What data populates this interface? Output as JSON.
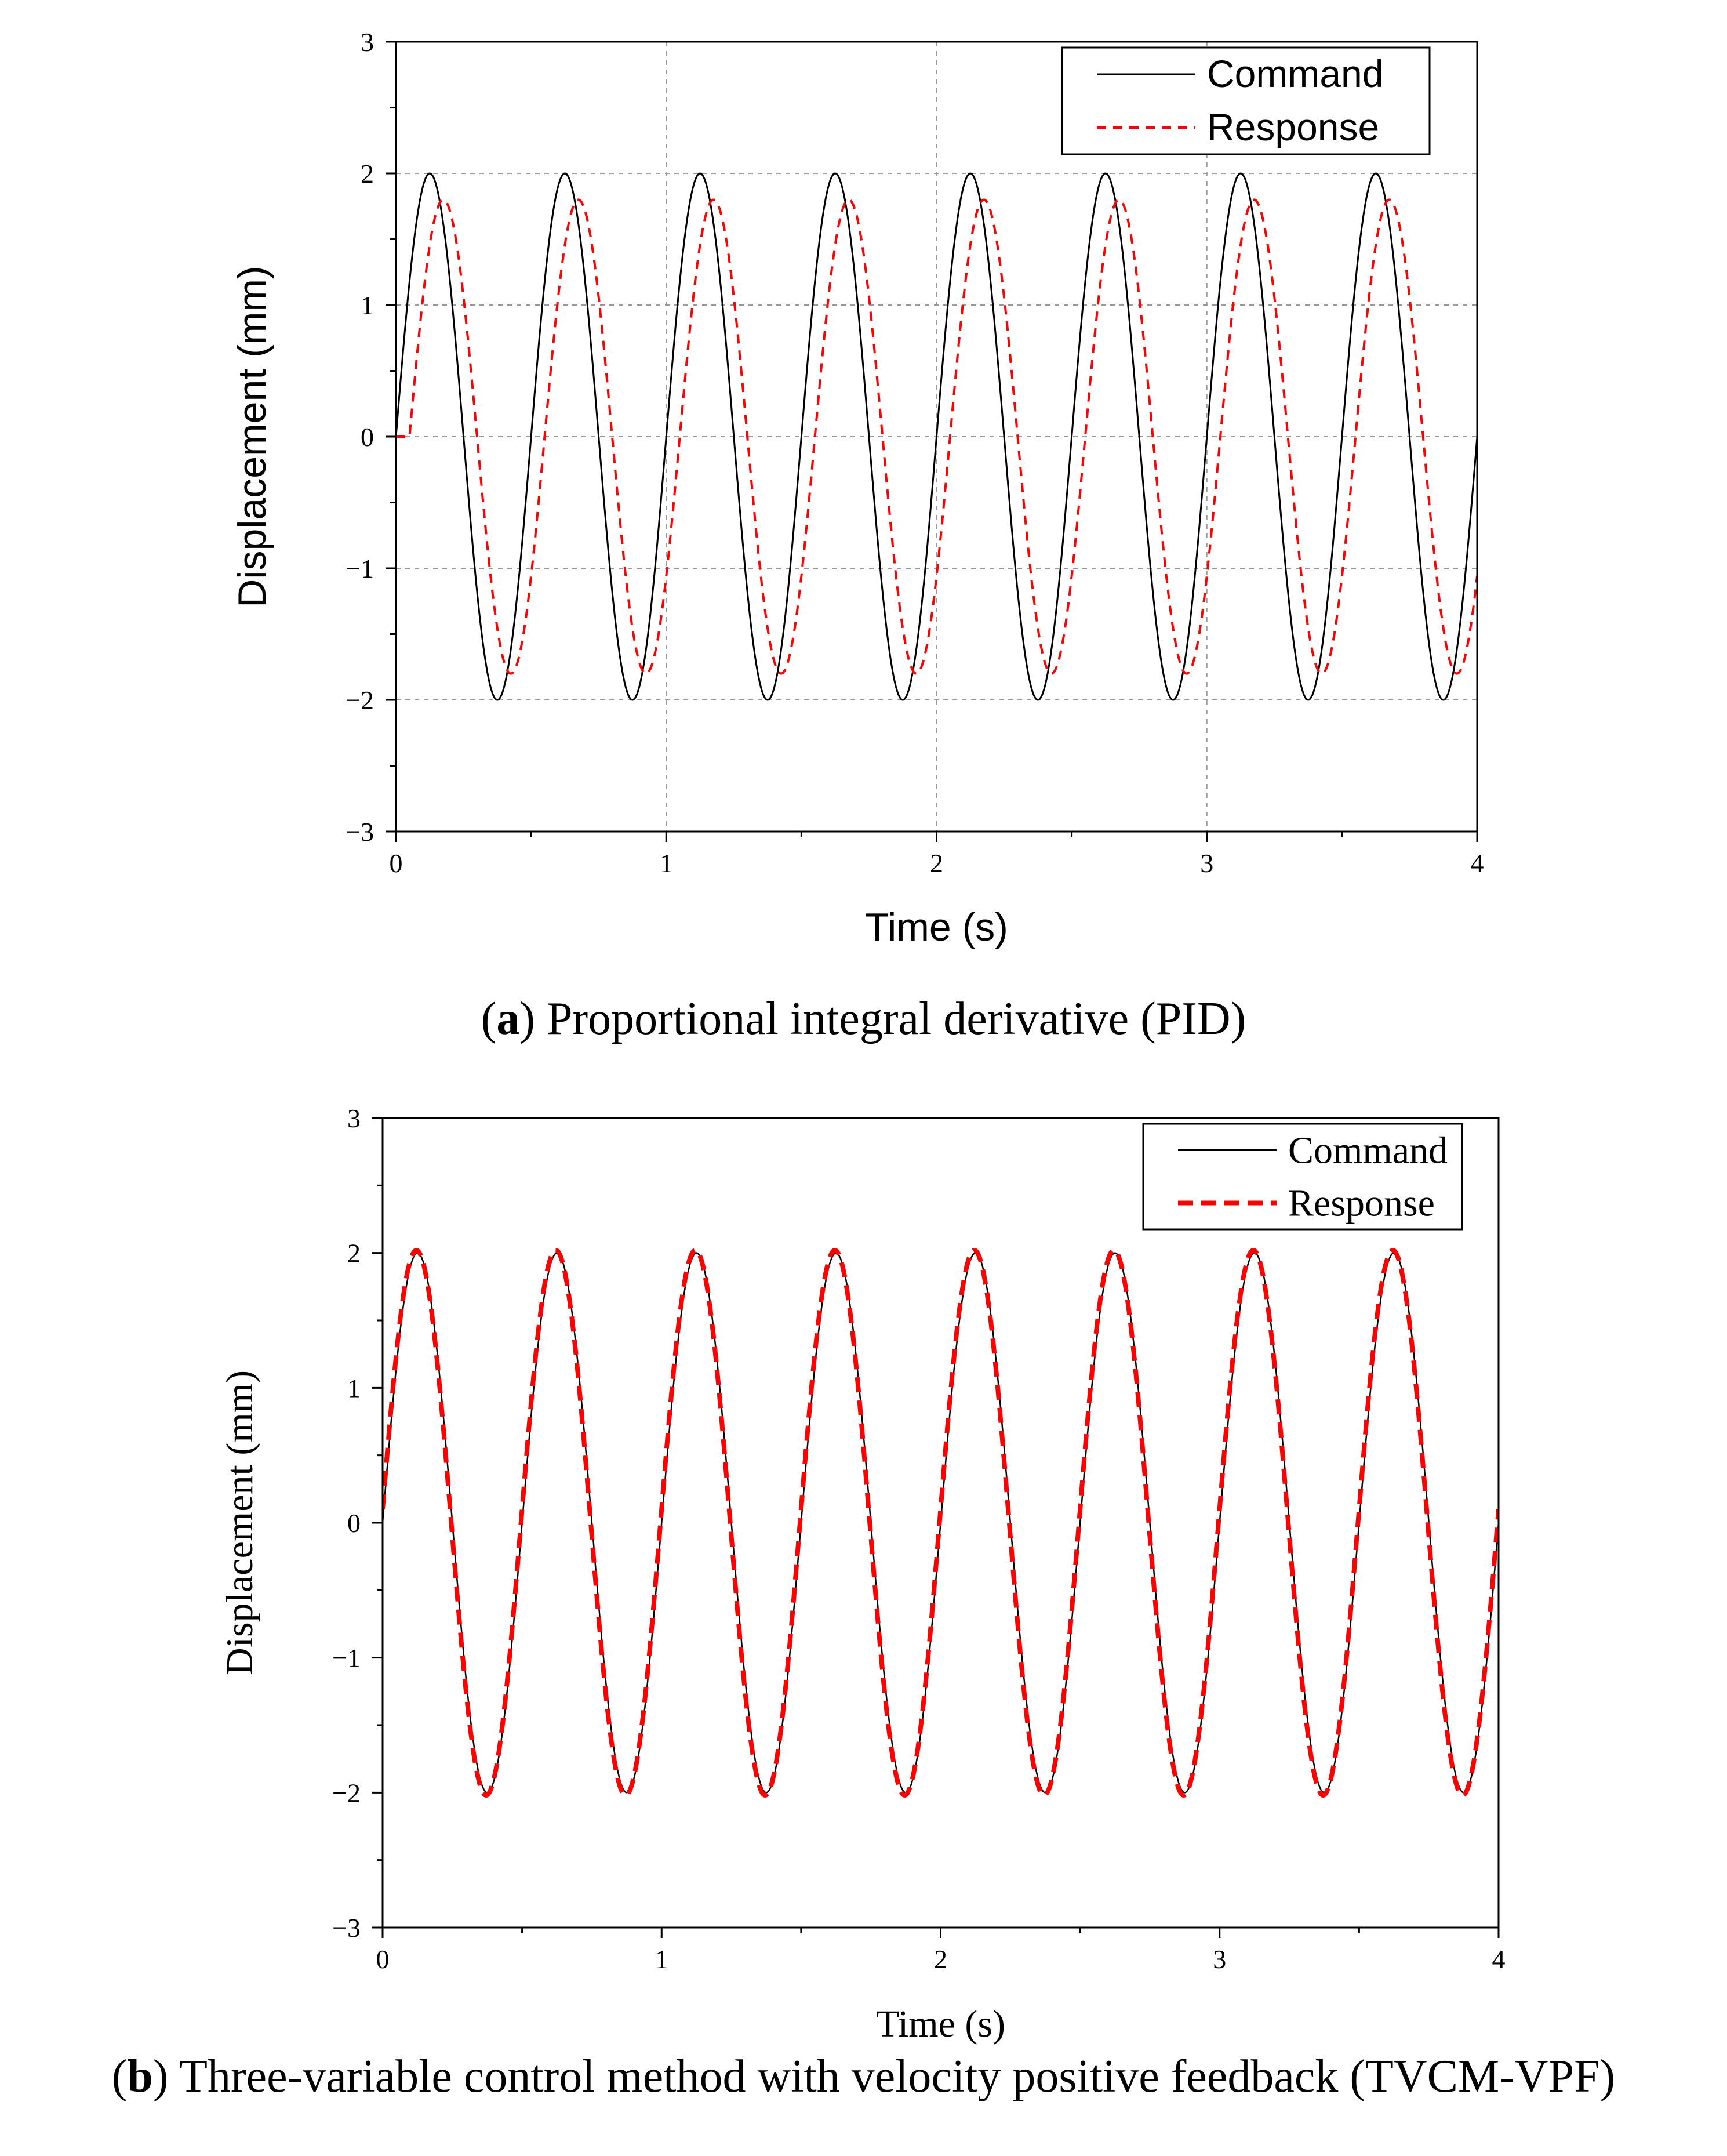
{
  "figure": {
    "caption_a": {
      "letter": "a",
      "text": "Proportional integral derivative (PID)"
    },
    "caption_b": {
      "letter": "b",
      "text": "Three-variable control method with velocity positive feedback (TVCM-VPF)"
    }
  },
  "chart_data": [
    {
      "type": "line",
      "title": "",
      "xlabel": "Time (s)",
      "ylabel": "Displacement (mm)",
      "xlim": [
        0,
        4
      ],
      "ylim": [
        -3,
        3
      ],
      "xticks": [
        0,
        1,
        2,
        3,
        4
      ],
      "xtick_labels": [
        "0",
        "1",
        "2",
        "3",
        "4"
      ],
      "yticks": [
        -3,
        -2,
        -1,
        0,
        1,
        2,
        3
      ],
      "ytick_labels": [
        "−3",
        "−2",
        "−1",
        "0",
        "1",
        "2",
        "3"
      ],
      "grid": true,
      "legend_position": "top-right",
      "series": [
        {
          "name": "Command",
          "style": "solid",
          "color": "#000000",
          "amplitude": 2.0,
          "frequency_hz": 2,
          "phase_delay_s": 0.0,
          "peaks_x": [
            0.125,
            0.625,
            1.125,
            1.625,
            2.125,
            2.625,
            3.125,
            3.625
          ],
          "peak_y": 2.0,
          "trough_y": -2.0
        },
        {
          "name": "Response",
          "style": "dashed",
          "color": "#ff0000",
          "amplitude": 1.8,
          "frequency_hz": 2,
          "phase_delay_s": 0.05,
          "peaks_x": [
            0.175,
            0.675,
            1.175,
            1.675,
            2.175,
            2.675,
            3.175,
            3.675
          ],
          "peak_y": 1.8,
          "trough_y": -1.8
        }
      ]
    },
    {
      "type": "line",
      "title": "",
      "xlabel": "Time (s)",
      "ylabel": "Displacement (mm)",
      "xlim": [
        0,
        4
      ],
      "ylim": [
        -3,
        3
      ],
      "xticks": [
        0,
        1,
        2,
        3,
        4
      ],
      "xtick_labels": [
        "0",
        "1",
        "2",
        "3",
        "4"
      ],
      "yticks": [
        -3,
        -2,
        -1,
        0,
        1,
        2,
        3
      ],
      "ytick_labels": [
        "−3",
        "−2",
        "−1",
        "0",
        "1",
        "2",
        "3"
      ],
      "grid": false,
      "legend_position": "top-right",
      "series": [
        {
          "name": "Command",
          "style": "solid",
          "color": "#000000",
          "amplitude": 2.0,
          "frequency_hz": 2,
          "phase_delay_s": 0.0,
          "peaks_x": [
            0.125,
            0.625,
            1.125,
            1.625,
            2.125,
            2.625,
            3.125,
            3.625
          ],
          "peak_y": 2.0,
          "trough_y": -2.0
        },
        {
          "name": "Response",
          "style": "dashed",
          "color": "#ff0000",
          "amplitude": 2.02,
          "frequency_hz": 2,
          "phase_delay_s": -0.004,
          "peaks_x": [
            0.12,
            0.62,
            1.12,
            1.62,
            2.12,
            2.62,
            3.12,
            3.62
          ],
          "peak_y": 2.02,
          "trough_y": -2.02
        }
      ]
    }
  ]
}
